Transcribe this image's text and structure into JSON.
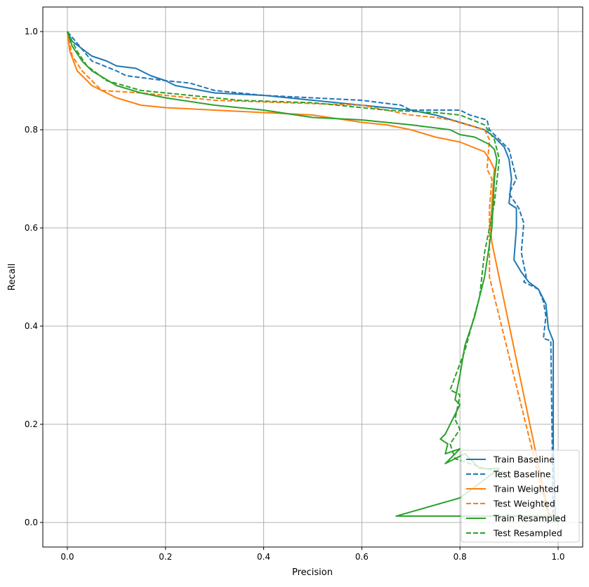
{
  "chart_data": {
    "type": "line",
    "title": "",
    "xlabel": "Precision",
    "ylabel": "Recall",
    "xlim": [
      -0.05,
      1.05
    ],
    "ylim": [
      -0.05,
      1.05
    ],
    "xticks": [
      "0.0",
      "0.2",
      "0.4",
      "0.6",
      "0.8",
      "1.0"
    ],
    "yticks": [
      "0.0",
      "0.2",
      "0.4",
      "0.6",
      "0.8",
      "1.0"
    ],
    "grid": true,
    "legend_position": "lower-right",
    "series": [
      {
        "name": "Train Baseline",
        "color": "#1f77b4",
        "dashed": false,
        "points": [
          [
            0,
            1
          ],
          [
            0.01,
            0.98
          ],
          [
            0.03,
            0.965
          ],
          [
            0.05,
            0.95
          ],
          [
            0.08,
            0.94
          ],
          [
            0.1,
            0.93
          ],
          [
            0.14,
            0.925
          ],
          [
            0.17,
            0.91
          ],
          [
            0.2,
            0.9
          ],
          [
            0.22,
            0.89
          ],
          [
            0.3,
            0.875
          ],
          [
            0.4,
            0.87
          ],
          [
            0.5,
            0.86
          ],
          [
            0.6,
            0.85
          ],
          [
            0.7,
            0.84
          ],
          [
            0.75,
            0.83
          ],
          [
            0.8,
            0.815
          ],
          [
            0.85,
            0.8
          ],
          [
            0.87,
            0.785
          ],
          [
            0.89,
            0.765
          ],
          [
            0.9,
            0.74
          ],
          [
            0.905,
            0.7
          ],
          [
            0.9,
            0.65
          ],
          [
            0.915,
            0.64
          ],
          [
            0.915,
            0.6
          ],
          [
            0.91,
            0.535
          ],
          [
            0.925,
            0.51
          ],
          [
            0.94,
            0.49
          ],
          [
            0.96,
            0.475
          ],
          [
            0.975,
            0.445
          ],
          [
            0.98,
            0.395
          ],
          [
            0.99,
            0.37
          ],
          [
            0.99,
            0.15
          ],
          [
            0.995,
            0.0
          ]
        ]
      },
      {
        "name": "Test Baseline",
        "color": "#1f77b4",
        "dashed": true,
        "points": [
          [
            0,
            1
          ],
          [
            0.05,
            0.94
          ],
          [
            0.1,
            0.92
          ],
          [
            0.12,
            0.91
          ],
          [
            0.2,
            0.9
          ],
          [
            0.25,
            0.895
          ],
          [
            0.3,
            0.88
          ],
          [
            0.4,
            0.87
          ],
          [
            0.6,
            0.86
          ],
          [
            0.68,
            0.85
          ],
          [
            0.7,
            0.84
          ],
          [
            0.8,
            0.84
          ],
          [
            0.82,
            0.83
          ],
          [
            0.855,
            0.82
          ],
          [
            0.86,
            0.8
          ],
          [
            0.88,
            0.78
          ],
          [
            0.9,
            0.76
          ],
          [
            0.915,
            0.7
          ],
          [
            0.9,
            0.67
          ],
          [
            0.92,
            0.64
          ],
          [
            0.93,
            0.61
          ],
          [
            0.925,
            0.55
          ],
          [
            0.935,
            0.5
          ],
          [
            0.93,
            0.49
          ],
          [
            0.96,
            0.475
          ],
          [
            0.97,
            0.45
          ],
          [
            0.975,
            0.42
          ],
          [
            0.97,
            0.375
          ],
          [
            0.985,
            0.37
          ],
          [
            0.99,
            0.0
          ]
        ]
      },
      {
        "name": "Train Weighted",
        "color": "#ff7f0e",
        "dashed": false,
        "points": [
          [
            0,
            1
          ],
          [
            0.005,
            0.96
          ],
          [
            0.02,
            0.92
          ],
          [
            0.05,
            0.89
          ],
          [
            0.1,
            0.865
          ],
          [
            0.15,
            0.85
          ],
          [
            0.2,
            0.845
          ],
          [
            0.3,
            0.84
          ],
          [
            0.4,
            0.835
          ],
          [
            0.5,
            0.83
          ],
          [
            0.6,
            0.815
          ],
          [
            0.65,
            0.81
          ],
          [
            0.7,
            0.8
          ],
          [
            0.75,
            0.785
          ],
          [
            0.8,
            0.775
          ],
          [
            0.85,
            0.755
          ],
          [
            0.86,
            0.74
          ],
          [
            0.87,
            0.72
          ],
          [
            0.865,
            0.65
          ],
          [
            0.862,
            0.6
          ],
          [
            0.865,
            0.57
          ],
          [
            0.98,
            0.02
          ],
          [
            0.99,
            0.01
          ]
        ]
      },
      {
        "name": "Test Weighted",
        "color": "#ff7f0e",
        "dashed": true,
        "points": [
          [
            0,
            1
          ],
          [
            0.01,
            0.95
          ],
          [
            0.03,
            0.92
          ],
          [
            0.07,
            0.88
          ],
          [
            0.15,
            0.875
          ],
          [
            0.3,
            0.86
          ],
          [
            0.45,
            0.855
          ],
          [
            0.6,
            0.85
          ],
          [
            0.7,
            0.83
          ],
          [
            0.75,
            0.825
          ],
          [
            0.78,
            0.82
          ],
          [
            0.85,
            0.8
          ],
          [
            0.86,
            0.78
          ],
          [
            0.855,
            0.72
          ],
          [
            0.865,
            0.7
          ],
          [
            0.86,
            0.64
          ],
          [
            0.86,
            0.5
          ],
          [
            0.98,
            0.015
          ]
        ]
      },
      {
        "name": "Train Resampled",
        "color": "#2ca02c",
        "dashed": false,
        "points": [
          [
            0,
            1
          ],
          [
            0.01,
            0.97
          ],
          [
            0.03,
            0.94
          ],
          [
            0.05,
            0.92
          ],
          [
            0.1,
            0.89
          ],
          [
            0.15,
            0.875
          ],
          [
            0.2,
            0.865
          ],
          [
            0.3,
            0.85
          ],
          [
            0.4,
            0.84
          ],
          [
            0.5,
            0.825
          ],
          [
            0.6,
            0.82
          ],
          [
            0.7,
            0.81
          ],
          [
            0.78,
            0.8
          ],
          [
            0.8,
            0.79
          ],
          [
            0.83,
            0.785
          ],
          [
            0.85,
            0.775
          ],
          [
            0.86,
            0.77
          ],
          [
            0.87,
            0.76
          ],
          [
            0.875,
            0.74
          ],
          [
            0.87,
            0.7
          ],
          [
            0.865,
            0.6
          ],
          [
            0.85,
            0.5
          ],
          [
            0.83,
            0.42
          ],
          [
            0.81,
            0.36
          ],
          [
            0.8,
            0.3
          ],
          [
            0.79,
            0.25
          ],
          [
            0.8,
            0.24
          ],
          [
            0.78,
            0.2
          ],
          [
            0.77,
            0.18
          ],
          [
            0.76,
            0.17
          ],
          [
            0.775,
            0.16
          ],
          [
            0.77,
            0.14
          ],
          [
            0.8,
            0.15
          ],
          [
            0.77,
            0.12
          ],
          [
            0.81,
            0.14
          ],
          [
            0.84,
            0.11
          ],
          [
            0.88,
            0.11
          ],
          [
            0.8,
            0.05
          ],
          [
            0.67,
            0.013
          ],
          [
            1.0,
            0.013
          ],
          [
            1.0,
            0.0
          ]
        ]
      },
      {
        "name": "Test Resampled",
        "color": "#2ca02c",
        "dashed": true,
        "points": [
          [
            0,
            1
          ],
          [
            0.02,
            0.96
          ],
          [
            0.04,
            0.93
          ],
          [
            0.08,
            0.9
          ],
          [
            0.15,
            0.88
          ],
          [
            0.25,
            0.87
          ],
          [
            0.35,
            0.86
          ],
          [
            0.5,
            0.855
          ],
          [
            0.6,
            0.845
          ],
          [
            0.65,
            0.84
          ],
          [
            0.75,
            0.835
          ],
          [
            0.8,
            0.83
          ],
          [
            0.85,
            0.81
          ],
          [
            0.87,
            0.78
          ],
          [
            0.88,
            0.74
          ],
          [
            0.87,
            0.65
          ],
          [
            0.85,
            0.55
          ],
          [
            0.84,
            0.46
          ],
          [
            0.81,
            0.35
          ],
          [
            0.78,
            0.27
          ],
          [
            0.8,
            0.26
          ],
          [
            0.79,
            0.21
          ],
          [
            0.8,
            0.19
          ],
          [
            0.78,
            0.16
          ],
          [
            0.79,
            0.13
          ],
          [
            0.85,
            0.11
          ],
          [
            0.9,
            0.1
          ]
        ]
      }
    ]
  }
}
